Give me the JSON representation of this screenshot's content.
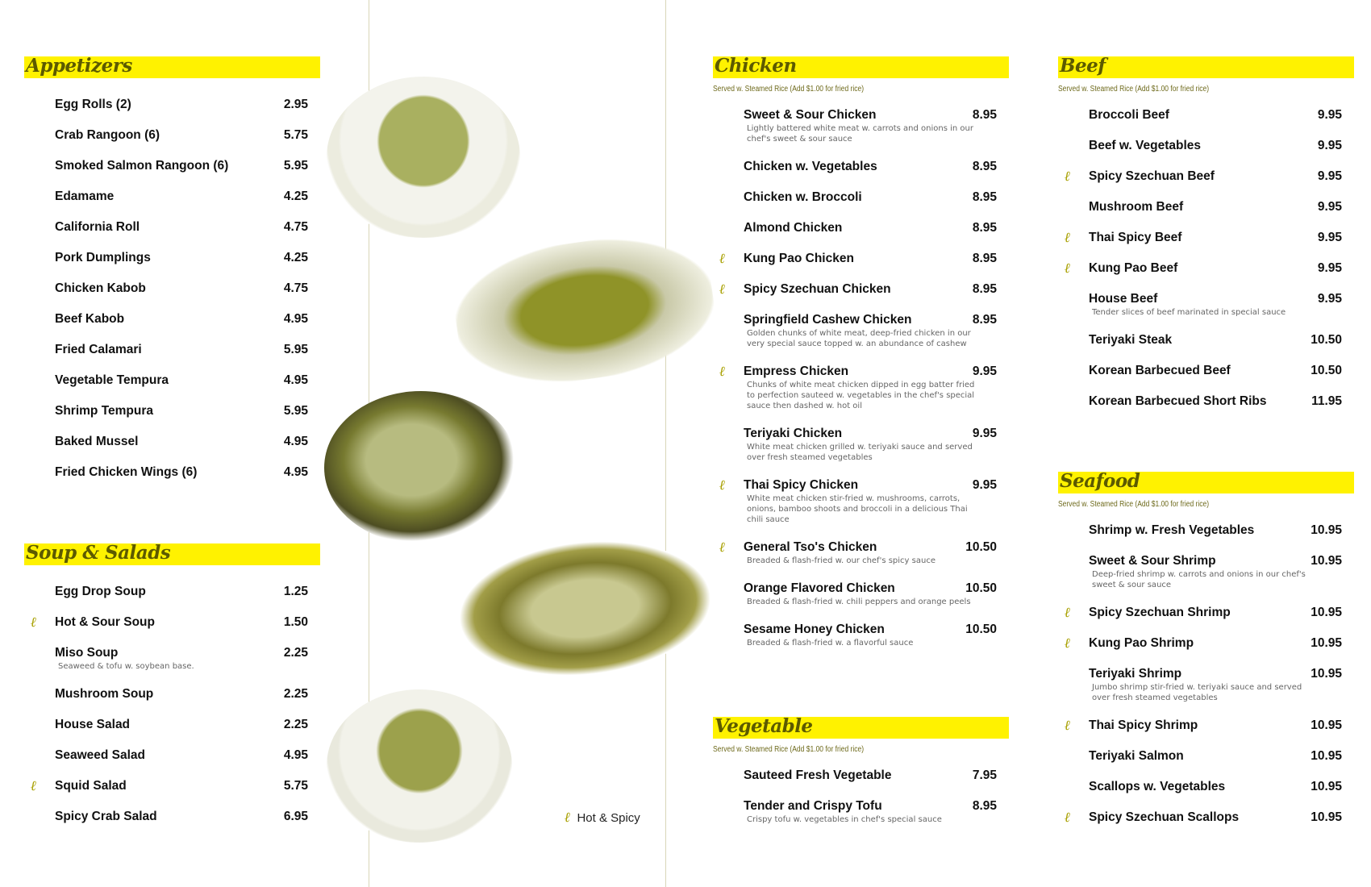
{
  "colors": {
    "header_band": "#fff200",
    "header_text": "#5c5a00",
    "spicy_icon": "#a8a000"
  },
  "legend": {
    "icon": "hot-pepper-icon",
    "label": "Hot & Spicy"
  },
  "sections": [
    {
      "id": "appetizers",
      "title": "Appetizers",
      "subtitle": "",
      "items": [
        {
          "name": "Egg Rolls (2)",
          "price": "2.95"
        },
        {
          "name": "Crab Rangoon (6)",
          "price": "5.75"
        },
        {
          "name": "Smoked Salmon Rangoon (6)",
          "price": "5.95"
        },
        {
          "name": "Edamame",
          "price": "4.25"
        },
        {
          "name": "California Roll",
          "price": "4.75"
        },
        {
          "name": "Pork Dumplings",
          "price": "4.25"
        },
        {
          "name": "Chicken Kabob",
          "price": "4.75"
        },
        {
          "name": "Beef Kabob",
          "price": "4.95"
        },
        {
          "name": "Fried Calamari",
          "price": "5.95"
        },
        {
          "name": "Vegetable Tempura",
          "price": "4.95"
        },
        {
          "name": "Shrimp Tempura",
          "price": "5.95"
        },
        {
          "name": "Baked Mussel",
          "price": "4.95"
        },
        {
          "name": "Fried Chicken Wings (6)",
          "price": "4.95"
        }
      ]
    },
    {
      "id": "soup-salads",
      "title": "Soup & Salads",
      "subtitle": "",
      "items": [
        {
          "name": "Egg Drop Soup",
          "price": "1.25"
        },
        {
          "name": "Hot & Sour Soup",
          "price": "1.50",
          "spicy": true
        },
        {
          "name": "Miso Soup",
          "price": "2.25",
          "desc": "Seaweed & tofu w. soybean base."
        },
        {
          "name": "Mushroom Soup",
          "price": "2.25"
        },
        {
          "name": "House Salad",
          "price": "2.25"
        },
        {
          "name": "Seaweed Salad",
          "price": "4.95"
        },
        {
          "name": "Squid Salad",
          "price": "5.75",
          "spicy": true
        },
        {
          "name": "Spicy Crab Salad",
          "price": "6.95"
        }
      ]
    },
    {
      "id": "chicken",
      "title": "Chicken",
      "subtitle": "Served w. Steamed Rice (Add $1.00 for fried rice)",
      "items": [
        {
          "name": "Sweet & Sour Chicken",
          "price": "8.95",
          "desc": "Lightly battered white meat w. carrots and onions in our chef's sweet & sour sauce"
        },
        {
          "name": "Chicken w. Vegetables",
          "price": "8.95"
        },
        {
          "name": "Chicken w. Broccoli",
          "price": "8.95"
        },
        {
          "name": "Almond Chicken",
          "price": "8.95"
        },
        {
          "name": "Kung Pao Chicken",
          "price": "8.95",
          "spicy": true
        },
        {
          "name": "Spicy Szechuan Chicken",
          "price": "8.95",
          "spicy": true
        },
        {
          "name": "Springfield Cashew Chicken",
          "price": "8.95",
          "desc": "Golden chunks of white meat, deep-fried chicken in our very special sauce topped w. an abundance of cashew"
        },
        {
          "name": "Empress Chicken",
          "price": "9.95",
          "spicy": true,
          "desc": "Chunks of white meat chicken dipped in egg batter fried to perfection sauteed w. vegetables in the chef's special sauce then dashed w. hot oil"
        },
        {
          "name": "Teriyaki Chicken",
          "price": "9.95",
          "desc": "White meat chicken grilled w. teriyaki sauce and served over fresh steamed vegetables"
        },
        {
          "name": "Thai Spicy Chicken",
          "price": "9.95",
          "spicy": true,
          "desc": "White meat chicken stir-fried w. mushrooms, carrots, onions, bamboo shoots and broccoli in a delicious Thai chili sauce"
        },
        {
          "name": "General Tso's Chicken",
          "price": "10.50",
          "spicy": true,
          "desc": "Breaded & flash-fried w. our chef's spicy sauce"
        },
        {
          "name": "Orange Flavored Chicken",
          "price": "10.50",
          "desc": "Breaded & flash-fried w. chili peppers and orange peels"
        },
        {
          "name": "Sesame Honey Chicken",
          "price": "10.50",
          "desc": "Breaded & flash-fried w. a flavorful sauce"
        }
      ]
    },
    {
      "id": "vegetable",
      "title": "Vegetable",
      "subtitle": "Served w. Steamed Rice (Add $1.00 for fried rice)",
      "items": [
        {
          "name": "Sauteed Fresh Vegetable",
          "price": "7.95"
        },
        {
          "name": "Tender and Crispy Tofu",
          "price": "8.95",
          "desc": "Crispy tofu w. vegetables in chef's special sauce"
        }
      ]
    },
    {
      "id": "beef",
      "title": "Beef",
      "subtitle": "Served w. Steamed Rice (Add $1.00 for fried rice)",
      "items": [
        {
          "name": "Broccoli Beef",
          "price": "9.95"
        },
        {
          "name": "Beef w. Vegetables",
          "price": "9.95"
        },
        {
          "name": "Spicy Szechuan Beef",
          "price": "9.95",
          "spicy": true
        },
        {
          "name": "Mushroom Beef",
          "price": "9.95"
        },
        {
          "name": "Thai Spicy Beef",
          "price": "9.95",
          "spicy": true
        },
        {
          "name": "Kung Pao Beef",
          "price": "9.95",
          "spicy": true
        },
        {
          "name": "House Beef",
          "price": "9.95",
          "desc": "Tender slices of beef marinated in special sauce"
        },
        {
          "name": "Teriyaki Steak",
          "price": "10.50"
        },
        {
          "name": "Korean Barbecued Beef",
          "price": "10.50"
        },
        {
          "name": "Korean Barbecued Short Ribs",
          "price": "11.95"
        }
      ]
    },
    {
      "id": "seafood",
      "title": "Seafood",
      "subtitle": "Served w. Steamed Rice (Add $1.00 for fried rice)",
      "items": [
        {
          "name": "Shrimp w. Fresh Vegetables",
          "price": "10.95"
        },
        {
          "name": "Sweet & Sour Shrimp",
          "price": "10.95",
          "desc": "Deep-fried shrimp w. carrots and onions in our chef's sweet & sour sauce"
        },
        {
          "name": "Spicy Szechuan Shrimp",
          "price": "10.95",
          "spicy": true
        },
        {
          "name": "Kung Pao Shrimp",
          "price": "10.95",
          "spicy": true
        },
        {
          "name": "Teriyaki Shrimp",
          "price": "10.95",
          "desc": "Jumbo shrimp stir-fried w. teriyaki sauce and served over fresh steamed vegetables"
        },
        {
          "name": "Thai Spicy Shrimp",
          "price": "10.95",
          "spicy": true
        },
        {
          "name": "Teriyaki Salmon",
          "price": "10.95"
        },
        {
          "name": "Scallops w. Vegetables",
          "price": "10.95"
        },
        {
          "name": "Spicy Szechuan Scallops",
          "price": "10.95",
          "spicy": true
        }
      ]
    }
  ]
}
